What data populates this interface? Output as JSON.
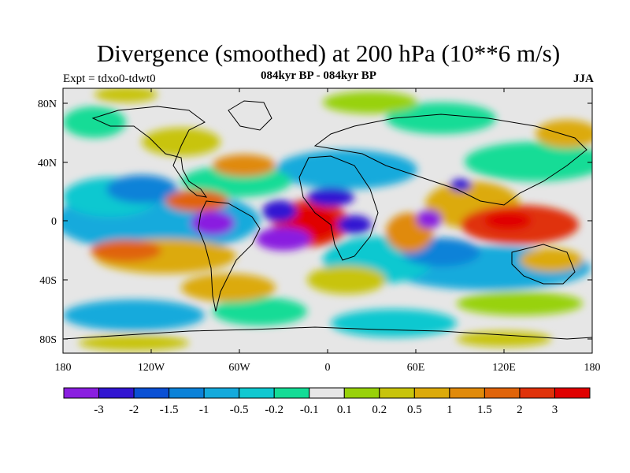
{
  "title": "Divergence (smoothed) at 200 hPa (10**6 m/s)",
  "subtitle": "084kyr BP - 084kyr BP",
  "experiment": "Expt = tdxo0-tdwt0",
  "season": "JJA",
  "axes": {
    "x_ticks": [
      "180",
      "120W",
      "60W",
      "0",
      "60E",
      "120E",
      "180"
    ],
    "y_ticks": [
      "80N",
      "40N",
      "0",
      "40S",
      "80S"
    ]
  },
  "colorbar": {
    "labels": [
      "-3",
      "-2",
      "-1.5",
      "-1",
      "-0.5",
      "-0.2",
      "-0.1",
      "0.1",
      "0.2",
      "0.5",
      "1",
      "1.5",
      "2",
      "3"
    ],
    "colors": [
      "#8a1ee0",
      "#3216d2",
      "#0a50d4",
      "#0c82d8",
      "#14aadc",
      "#10c8d0",
      "#14dc96",
      "#e6e6e6",
      "#98d20a",
      "#c8c40c",
      "#dcaa0a",
      "#e08a0a",
      "#e0640a",
      "#e0320a",
      "#e00000"
    ]
  },
  "colors": {
    "land_outline": "#000000",
    "background": "#ffffff",
    "no_data": "#e6e6e6"
  }
}
